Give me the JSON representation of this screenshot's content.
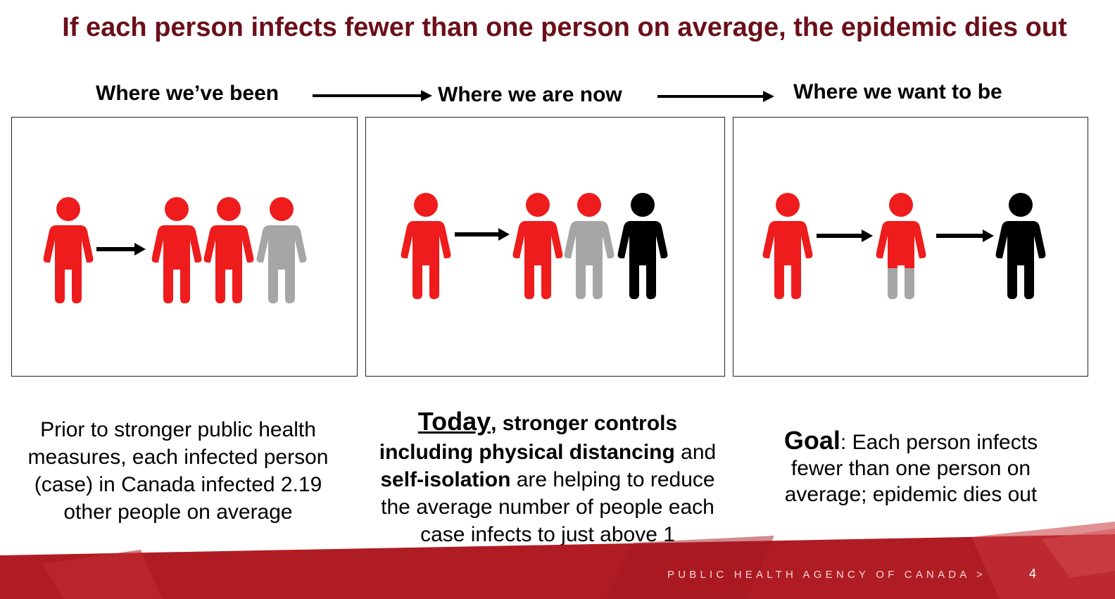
{
  "title": "If each person infects fewer than one person on average, the epidemic dies out",
  "stages": [
    {
      "label": "Where we’ve been"
    },
    {
      "label": "Where we are now"
    },
    {
      "label": "Where we want to be"
    }
  ],
  "captions": {
    "been": {
      "lines": [
        "Prior to stronger public health",
        "measures, each infected person",
        "(case) in Canada infected 2.19",
        "other people on average"
      ]
    },
    "now": {
      "today_word": "Today",
      "after_today": ", stronger controls",
      "bold_line2": "including physical distancing",
      "line2_tail": " and",
      "bold_line3": "self-isolation",
      "line3_tail": " are helping to reduce",
      "line4": "the average number of people each",
      "line5": "case infects to just above 1"
    },
    "want": {
      "goal_word": "Goal",
      "after_goal": ": Each person infects",
      "line2": "fewer than one person on",
      "line3": "average; epidemic dies out"
    }
  },
  "footer": {
    "agency": "PUBLIC HEALTH AGENCY OF CANADA  >",
    "page": "4"
  },
  "colors": {
    "title": "#6b0f1a",
    "infected_red": "#ee1c1c",
    "gray": "#a6a6a6",
    "black": "#000000",
    "footer_red": "#b01c24"
  }
}
